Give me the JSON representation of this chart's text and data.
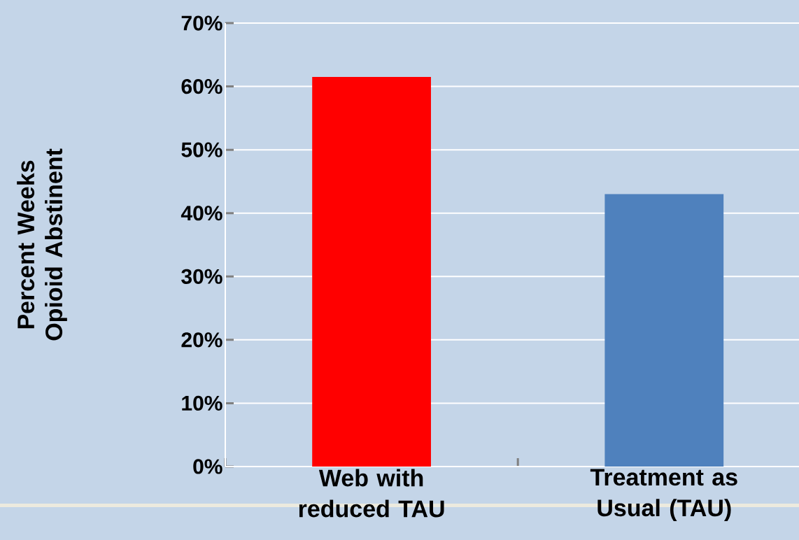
{
  "chart_data": {
    "type": "bar",
    "ylabel": "Percent  Weeks Opioid Abstinent",
    "categories": [
      "Web with reduced TAU",
      "Treatment as Usual (TAU)"
    ],
    "values": [
      61.5,
      43
    ],
    "colors": [
      "#ff0000",
      "#4f81bd"
    ],
    "ylim": [
      0,
      70
    ],
    "yticks": [
      {
        "value": 0,
        "label": "0%"
      },
      {
        "value": 10,
        "label": "10%"
      },
      {
        "value": 20,
        "label": "20%"
      },
      {
        "value": 30,
        "label": "30%"
      },
      {
        "value": 40,
        "label": "40%"
      },
      {
        "value": 50,
        "label": "50%"
      },
      {
        "value": 60,
        "label": "60%"
      },
      {
        "value": 70,
        "label": "70%"
      }
    ],
    "grid": "y"
  }
}
